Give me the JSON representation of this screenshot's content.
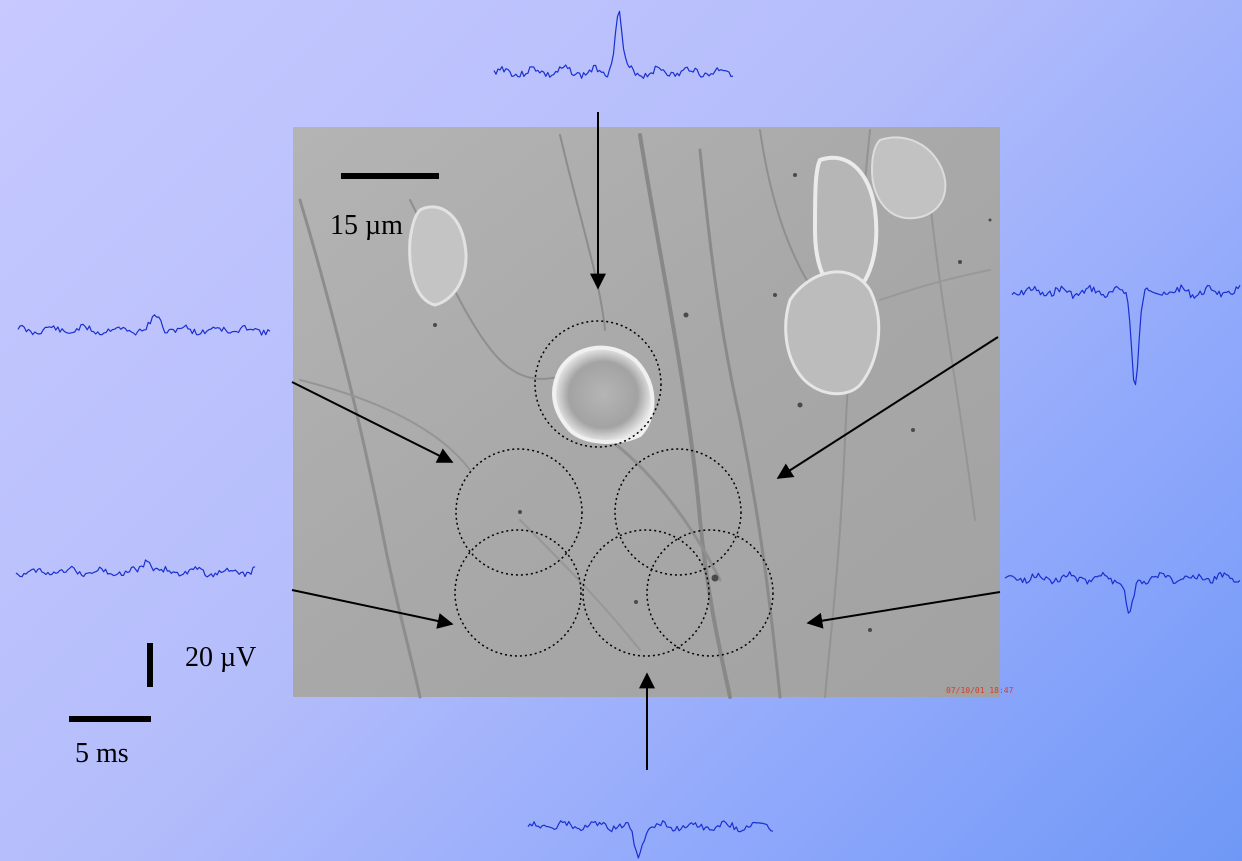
{
  "figure": {
    "micrograph_scale_label": "15 µm",
    "voltage_scale_label": "20 µV",
    "time_scale_label": "5 ms",
    "camera_timestamp": "07/10/01 18:47"
  },
  "traces": [
    {
      "id": "top",
      "color": "#1a2fd0"
    },
    {
      "id": "upper-left",
      "color": "#1a2fd0"
    },
    {
      "id": "upper-right",
      "color": "#1a2fd0"
    },
    {
      "id": "lower-left",
      "color": "#1a2fd0"
    },
    {
      "id": "lower-right",
      "color": "#1a2fd0"
    },
    {
      "id": "bottom",
      "color": "#1a2fd0"
    }
  ],
  "colors": {
    "background_start": "#c7c9ff",
    "background_end": "#6f98f6",
    "trace": "#1a2fd0",
    "micrograph": "#a9a9a9"
  }
}
